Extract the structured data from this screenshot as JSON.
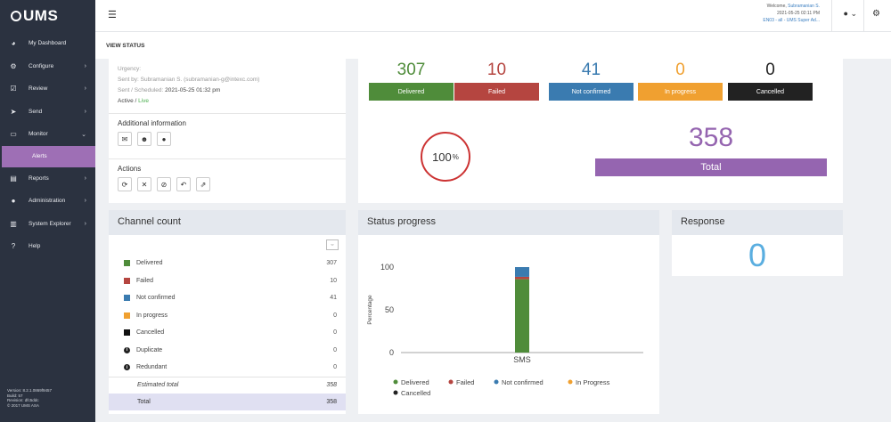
{
  "app": {
    "logo": "UMS"
  },
  "sidebar": {
    "items": [
      {
        "label": "My Dashboard",
        "icon": "dashboard-icon",
        "glyph": "◕",
        "arrow": ""
      },
      {
        "label": "Configure",
        "icon": "cogs-icon",
        "glyph": "⚙",
        "arrow": "›"
      },
      {
        "label": "Review",
        "icon": "check-square-icon",
        "glyph": "☑",
        "arrow": "›"
      },
      {
        "label": "Send",
        "icon": "paper-plane-icon",
        "glyph": "➤",
        "arrow": "›"
      },
      {
        "label": "Monitor",
        "icon": "desktop-icon",
        "glyph": "▭",
        "arrow": "⌄"
      }
    ],
    "sub_item": "Alerts",
    "items_after": [
      {
        "label": "Reports",
        "icon": "report-icon",
        "glyph": "▤",
        "arrow": "›"
      },
      {
        "label": "Administration",
        "icon": "user-icon",
        "glyph": "●",
        "arrow": "›"
      },
      {
        "label": "System Explorer",
        "icon": "explorer-icon",
        "glyph": "▥",
        "arrow": "›"
      },
      {
        "label": "Help",
        "icon": "help-icon",
        "glyph": "?",
        "arrow": ""
      }
    ],
    "footer": [
      "Version: 8.2.1.0869f9457",
      "Build: 57",
      "Revision: dfc5ddc",
      "© 2017 UMS ASA"
    ]
  },
  "header": {
    "welcome_prefix": "Welcome,",
    "user": "Subramanian S.",
    "datetime": "2021-05-25 02:11 PM",
    "role": "EN03 - all - UMS Super Ad..."
  },
  "breadcrumb": "VIEW STATUS",
  "info": {
    "urgency": "Urgency:",
    "sent_by": "Sent by: Subramanian S. (subramanian-g@intexc.com)",
    "sent_scheduled_label": "Sent / Scheduled:",
    "sent_scheduled_value": "2021-05-25 01:32 pm",
    "status_prefix": "Active /",
    "status_live": "Live",
    "additional_title": "Additional information",
    "actions_title": "Actions"
  },
  "stats": [
    {
      "value": "307",
      "label": "Delivered",
      "color": "#4f8c3a"
    },
    {
      "value": "10",
      "label": "Failed",
      "color": "#b54540"
    },
    {
      "value": "41",
      "label": "Not confirmed",
      "color": "#3a7bb0"
    },
    {
      "value": "0",
      "label": "In progress",
      "color": "#f0a030"
    },
    {
      "value": "0",
      "label": "Cancelled",
      "color": "#222222"
    }
  ],
  "gauge": {
    "value": "100",
    "unit": "%"
  },
  "total": {
    "value": "358",
    "label": "Total"
  },
  "channel_count": {
    "title": "Channel count",
    "rows": [
      {
        "label": "Delivered",
        "count": "307",
        "color": "#4f8c3a",
        "kind": "swatch"
      },
      {
        "label": "Failed",
        "count": "10",
        "color": "#b54540",
        "kind": "swatch"
      },
      {
        "label": "Not confirmed",
        "count": "41",
        "color": "#3a7bb0",
        "kind": "swatch"
      },
      {
        "label": "In progress",
        "count": "0",
        "color": "#f0a030",
        "kind": "swatch"
      },
      {
        "label": "Cancelled",
        "count": "0",
        "color": "#111111",
        "kind": "swatch"
      },
      {
        "label": "Duplicate",
        "count": "0",
        "color": "#222222",
        "kind": "info"
      },
      {
        "label": "Redundant",
        "count": "0",
        "color": "#222222",
        "kind": "info"
      }
    ],
    "estimated_label": "Estimated total",
    "estimated_value": "358",
    "total_label": "Total",
    "total_value": "358"
  },
  "status_progress": {
    "title": "Status progress"
  },
  "response": {
    "title": "Response",
    "value": "0"
  },
  "chart_data": {
    "type": "bar",
    "stacked": true,
    "categories": [
      "SMS"
    ],
    "ylabel": "Percentage",
    "ylim": [
      0,
      100
    ],
    "yticks": [
      0,
      50,
      100
    ],
    "series": [
      {
        "name": "Delivered",
        "values": [
          85.8
        ],
        "color": "#4f8c3a"
      },
      {
        "name": "Failed",
        "values": [
          2.8
        ],
        "color": "#b54540"
      },
      {
        "name": "Not confirmed",
        "values": [
          11.4
        ],
        "color": "#3a7bb0"
      },
      {
        "name": "In Progress",
        "values": [
          0
        ],
        "color": "#f0a030"
      },
      {
        "name": "Cancelled",
        "values": [
          0
        ],
        "color": "#222222"
      }
    ],
    "legend": "bottom"
  }
}
